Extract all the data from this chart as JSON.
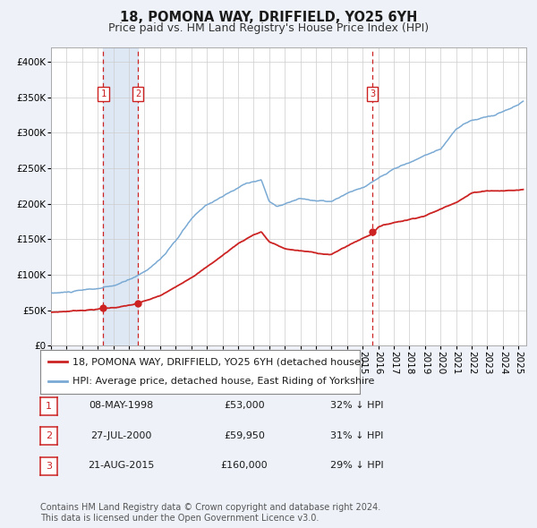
{
  "title": "18, POMONA WAY, DRIFFIELD, YO25 6YH",
  "subtitle": "Price paid vs. HM Land Registry's House Price Index (HPI)",
  "xlim": [
    1995.0,
    2025.5
  ],
  "ylim": [
    0,
    420000
  ],
  "yticks": [
    0,
    50000,
    100000,
    150000,
    200000,
    250000,
    300000,
    350000,
    400000
  ],
  "ytick_labels": [
    "£0",
    "£50K",
    "£100K",
    "£150K",
    "£200K",
    "£250K",
    "£300K",
    "£350K",
    "£400K"
  ],
  "hpi_color": "#7aaad4",
  "price_color": "#cc2222",
  "background_color": "#eef2f8",
  "plot_bg_color": "#ffffff",
  "grid_color": "#cccccc",
  "sale_events": [
    {
      "label": "1",
      "date_str": "08-MAY-1998",
      "year": 1998.36,
      "price": 53000,
      "hpi_pct": "32% ↓ HPI"
    },
    {
      "label": "2",
      "date_str": "27-JUL-2000",
      "year": 2000.57,
      "price": 59950,
      "hpi_pct": "31% ↓ HPI"
    },
    {
      "label": "3",
      "date_str": "21-AUG-2015",
      "year": 2015.64,
      "price": 160000,
      "hpi_pct": "29% ↓ HPI"
    }
  ],
  "vline_color": "#cc2222",
  "shade_color": "#cddcf0",
  "legend_label_price": "18, POMONA WAY, DRIFFIELD, YO25 6YH (detached house)",
  "legend_label_hpi": "HPI: Average price, detached house, East Riding of Yorkshire",
  "footnote": "Contains HM Land Registry data © Crown copyright and database right 2024.\nThis data is licensed under the Open Government Licence v3.0.",
  "title_fontsize": 10.5,
  "subtitle_fontsize": 9,
  "tick_fontsize": 7.5,
  "legend_fontsize": 8,
  "table_fontsize": 8,
  "footnote_fontsize": 7
}
